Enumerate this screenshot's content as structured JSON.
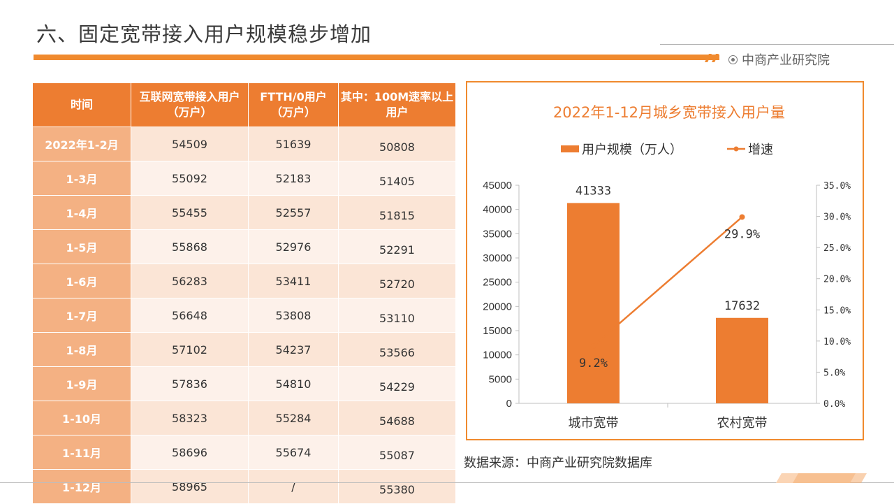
{
  "slide": {
    "title": "六、固定宽带接入用户规模稳步增加",
    "logo_text": "中商产业研究院",
    "source": "数据来源：中商产业研究院数据库",
    "accent_color": "#ed7d31"
  },
  "table": {
    "headers": [
      "时间",
      "互联网宽带接入用户（万户）",
      "FTTH/0用户（万户）",
      "其中：100M速率以上用户"
    ],
    "rows": [
      [
        "2022年1-2月",
        "54509",
        "51639",
        "50808"
      ],
      [
        "1-3月",
        "55092",
        "52183",
        "51405"
      ],
      [
        "1-4月",
        "55455",
        "52557",
        "51815"
      ],
      [
        "1-5月",
        "55868",
        "52976",
        "52291"
      ],
      [
        "1-6月",
        "56283",
        "53411",
        "52720"
      ],
      [
        "1-7月",
        "56648",
        "53808",
        "53110"
      ],
      [
        "1-8月",
        "57102",
        "54237",
        "53566"
      ],
      [
        "1-9月",
        "57836",
        "54810",
        "54229"
      ],
      [
        "1-10月",
        "58323",
        "55284",
        "54688"
      ],
      [
        "1-11月",
        "58696",
        "55674",
        "55087"
      ],
      [
        "1-12月",
        "58965",
        "/",
        "55380"
      ]
    ]
  },
  "chart_data": {
    "type": "bar",
    "title": "2022年1-12月城乡宽带接入用户量",
    "categories": [
      "城市宽带",
      "农村宽带"
    ],
    "series": [
      {
        "name": "用户规模（万人）",
        "type": "bar",
        "axis": "left",
        "values": [
          41333,
          17632
        ],
        "labels": [
          "41333",
          "17632"
        ],
        "color": "#ed7d31"
      },
      {
        "name": "增速",
        "type": "line",
        "axis": "right",
        "values": [
          9.2,
          29.9
        ],
        "labels": [
          "9.2%",
          "29.9%"
        ],
        "color": "#ed7d31"
      }
    ],
    "ylim": [
      0,
      45000
    ],
    "yticks": [
      "0",
      "5000",
      "10000",
      "15000",
      "20000",
      "25000",
      "30000",
      "35000",
      "40000",
      "45000"
    ],
    "y2lim": [
      0,
      35
    ],
    "y2ticks": [
      "0.0%",
      "5.0%",
      "10.0%",
      "15.0%",
      "20.0%",
      "25.0%",
      "30.0%",
      "35.0%"
    ],
    "legend": "top",
    "grid": false
  }
}
